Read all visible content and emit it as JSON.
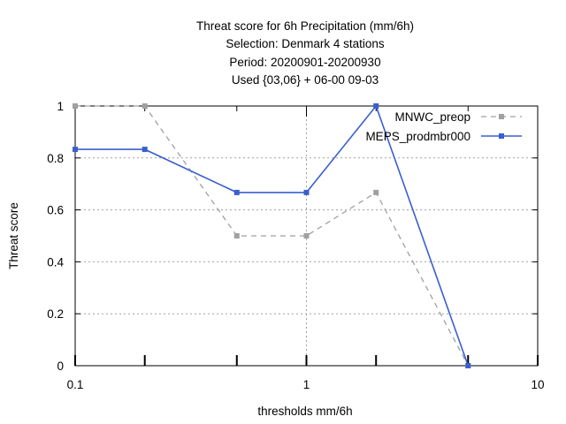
{
  "chart_data": {
    "type": "line",
    "title_lines": [
      "Threat score  for 6h Precipitation (mm/6h)",
      "Selection: Denmark      4 stations",
      "Period: 20200901-20200930",
      "Used {03,06} + 06-00 09-03"
    ],
    "xlabel": "thresholds mm/6h",
    "ylabel": "Threat score",
    "x_scale": "log",
    "xlim": [
      0.1,
      10
    ],
    "ylim": [
      0,
      1
    ],
    "x_ticks": [
      {
        "value": 0.1,
        "label": "0.1"
      },
      {
        "value": 1,
        "label": "1"
      },
      {
        "value": 10,
        "label": "10"
      }
    ],
    "x_minor_ticks": [
      0.2,
      0.5,
      2,
      5
    ],
    "y_ticks": [
      {
        "value": 0,
        "label": "0"
      },
      {
        "value": 0.2,
        "label": "0.2"
      },
      {
        "value": 0.4,
        "label": "0.4"
      },
      {
        "value": 0.6,
        "label": "0.6"
      },
      {
        "value": 0.8,
        "label": "0.8"
      },
      {
        "value": 1,
        "label": "1"
      }
    ],
    "grid": true,
    "legend_position": "top-right",
    "series": [
      {
        "name": "MNWC_preop",
        "color": "#a0a0a0",
        "dashed": true,
        "x": [
          0.1,
          0.2,
          0.5,
          1,
          2,
          5
        ],
        "y": [
          1.0,
          1.0,
          0.5,
          0.5,
          0.667,
          0.0
        ]
      },
      {
        "name": "MEPS_prodmbr000",
        "color": "#3a5fcd",
        "dashed": false,
        "x": [
          0.1,
          0.2,
          0.5,
          1,
          2,
          5
        ],
        "y": [
          0.833,
          0.833,
          0.667,
          0.667,
          1.0,
          0.0
        ]
      }
    ]
  }
}
